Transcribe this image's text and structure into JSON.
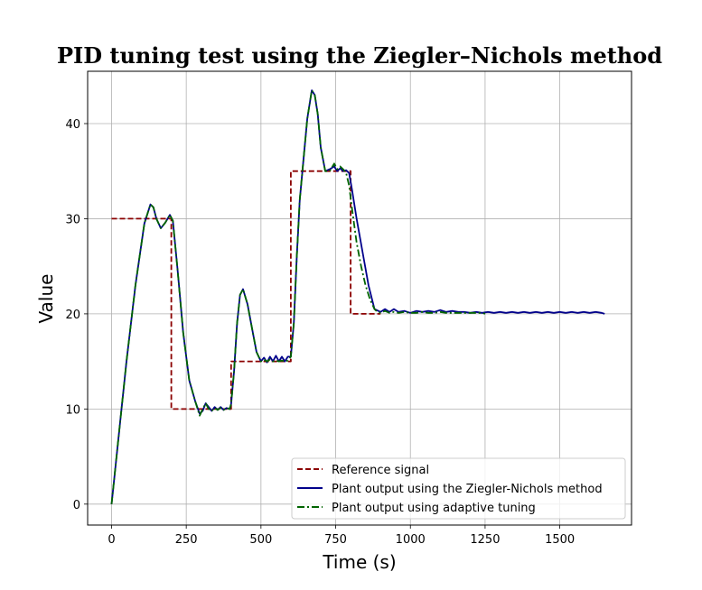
{
  "chart_data": {
    "type": "line",
    "title": "PID tuning test using the Ziegler–Nichols method",
    "xlabel": "Time (s)",
    "ylabel": "Value",
    "xlim": [
      -80,
      1740
    ],
    "ylim": [
      -2.2,
      45.5
    ],
    "xticks": [
      0,
      250,
      500,
      750,
      1000,
      1250,
      1500
    ],
    "yticks": [
      0,
      10,
      20,
      30,
      40
    ],
    "grid": true,
    "legend_position": "lower-right",
    "series": [
      {
        "name": "Reference signal",
        "color": "#8b0000",
        "style": "dashed",
        "x": [
          0,
          200,
          200,
          400,
          400,
          600,
          600,
          800,
          800,
          900
        ],
        "y": [
          30,
          30,
          10,
          10,
          15,
          15,
          35,
          35,
          20,
          20
        ]
      },
      {
        "name": "Plant output using the Ziegler-Nichols method",
        "color": "#00008b",
        "style": "solid",
        "x": [
          0,
          20,
          50,
          80,
          110,
          130,
          140,
          150,
          165,
          180,
          195,
          205,
          220,
          240,
          260,
          280,
          295,
          305,
          315,
          325,
          335,
          345,
          355,
          365,
          375,
          385,
          395,
          400,
          410,
          420,
          430,
          440,
          455,
          470,
          485,
          500,
          510,
          520,
          530,
          540,
          550,
          560,
          570,
          580,
          590,
          600,
          610,
          620,
          630,
          640,
          655,
          670,
          680,
          690,
          700,
          715,
          730,
          745,
          755,
          765,
          775,
          785,
          795,
          805,
          820,
          840,
          860,
          880,
          900,
          915,
          930,
          945,
          960,
          980,
          1000,
          1020,
          1040,
          1060,
          1080,
          1100,
          1120,
          1140,
          1160,
          1180,
          1200,
          1220,
          1240,
          1260,
          1280,
          1300,
          1320,
          1340,
          1360,
          1380,
          1400,
          1420,
          1440,
          1460,
          1480,
          1500,
          1520,
          1540,
          1560,
          1580,
          1600,
          1620,
          1640,
          1650
        ],
        "y": [
          0,
          6,
          15,
          23,
          29.5,
          31.5,
          31.2,
          30,
          29,
          29.6,
          30.4,
          29.8,
          25,
          18,
          13,
          10.8,
          9.5,
          9.8,
          10.6,
          10.2,
          9.8,
          10.2,
          9.9,
          10.2,
          9.9,
          10.1,
          10,
          10.5,
          14,
          19,
          22,
          22.6,
          21,
          18.5,
          16,
          15,
          15.4,
          14.9,
          15.5,
          15,
          15.6,
          15,
          15.5,
          15,
          15.5,
          15.5,
          19,
          26,
          32,
          35.5,
          40.5,
          43.5,
          43,
          41,
          37.5,
          35,
          35.2,
          35.5,
          35,
          35.3,
          35,
          35.1,
          34.8,
          33,
          30,
          26.5,
          23,
          20.5,
          20.2,
          20.5,
          20.2,
          20.5,
          20.2,
          20.3,
          20.1,
          20.3,
          20.2,
          20.3,
          20.2,
          20.4,
          20.2,
          20.3,
          20.2,
          20.2,
          20.1,
          20.2,
          20.1,
          20.2,
          20.1,
          20.2,
          20.1,
          20.2,
          20.1,
          20.2,
          20.1,
          20.2,
          20.1,
          20.2,
          20.1,
          20.2,
          20.1,
          20.2,
          20.1,
          20.2,
          20.1,
          20.2,
          20.1,
          20
        ]
      },
      {
        "name": "Plant output using adaptive tuning",
        "color": "#006400",
        "style": "dashdot",
        "x": [
          0,
          20,
          50,
          80,
          110,
          130,
          140,
          150,
          165,
          180,
          195,
          205,
          220,
          240,
          260,
          280,
          295,
          305,
          315,
          325,
          335,
          345,
          355,
          365,
          375,
          385,
          395,
          400,
          410,
          420,
          430,
          440,
          455,
          470,
          485,
          500,
          510,
          520,
          530,
          540,
          550,
          560,
          570,
          580,
          590,
          600,
          610,
          620,
          630,
          640,
          655,
          670,
          680,
          690,
          700,
          715,
          730,
          745,
          755,
          765,
          775,
          785,
          795,
          805,
          820,
          835,
          850,
          865,
          880,
          890,
          900,
          915,
          930,
          945,
          960,
          980,
          1000,
          1020,
          1040,
          1060,
          1080,
          1100,
          1120,
          1140,
          1160,
          1180,
          1200,
          1220,
          1240,
          1250
        ],
        "y": [
          0,
          6,
          15,
          23,
          29.5,
          31.5,
          31.2,
          30,
          29,
          29.6,
          30.4,
          29.8,
          25,
          18,
          13,
          10.8,
          9.3,
          10,
          10.6,
          10,
          9.8,
          10.1,
          9.9,
          10.1,
          9.9,
          10.1,
          10,
          10.5,
          14,
          19,
          22,
          22.6,
          21,
          18.5,
          16,
          15,
          15.2,
          15,
          15.2,
          15,
          15.1,
          15,
          15.1,
          15,
          15.1,
          15.5,
          19,
          26,
          32,
          35.5,
          40.5,
          43.5,
          43,
          41,
          37.5,
          35,
          35,
          35.8,
          35.2,
          35.5,
          35.2,
          34.8,
          33.5,
          31,
          27.5,
          25,
          23,
          21.5,
          20.5,
          20.2,
          20.1,
          20.3,
          20.1,
          20.2,
          20.1,
          20.2,
          20.1,
          20.1,
          20.2,
          20.1,
          20.1,
          20.2,
          20.1,
          20.1,
          20.1,
          20.1,
          20.1,
          20.1,
          20.1,
          20
        ]
      }
    ]
  }
}
